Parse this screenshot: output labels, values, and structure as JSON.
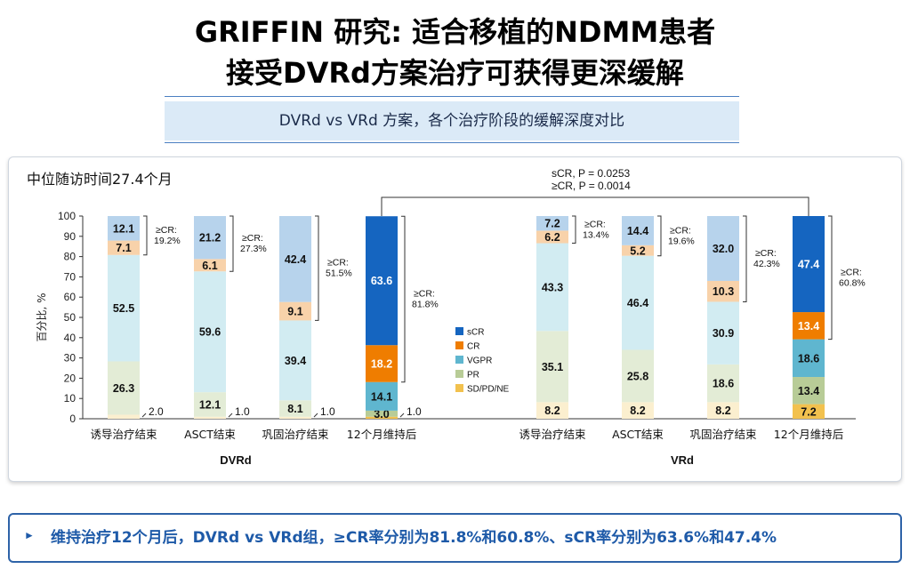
{
  "title": {
    "line1": "GRIFFIN 研究: 适合移植的NDMM患者",
    "line2": "接受DVRd方案治疗可获得更深缓解"
  },
  "subtitle": "DVRd vs VRd 方案，各个治疗阶段的缓解深度对比",
  "followup": "中位随访时间27.4个月",
  "colors": {
    "sCR": "#1565c0",
    "CR": "#ef7d00",
    "VGPR": "#5fb6cf",
    "PR": "#b8cc97",
    "SDPDNE": "#f2c14e",
    "sCR_light": "#b7d3ec",
    "CR_light": "#f8d2aa",
    "VGPR_light": "#d2ecf2",
    "PR_light": "#e3ecd6",
    "SDPDNE_light": "#fbefcf",
    "bottom_text": "#1e5aa8"
  },
  "bottom_note": "维持治疗12个月后，DVRd vs VRd组，≥CR率分别为81.8%和60.8%、sCR率分别为63.6%和47.4%",
  "chart_data": {
    "type": "stacked-bar",
    "ylabel": "百分比, %",
    "ylim": [
      0,
      100
    ],
    "yticks": [
      0,
      10,
      20,
      30,
      40,
      50,
      60,
      70,
      80,
      90,
      100
    ],
    "legend": [
      "sCR",
      "CR",
      "VGPR",
      "PR",
      "SD/PD/NE"
    ],
    "legend_keys": [
      "sCR",
      "CR",
      "VGPR",
      "PR",
      "SDPDNE"
    ],
    "pvalue_lines": [
      "sCR, P = 0.0253",
      "≥CR, P = 0.0014"
    ],
    "groups": [
      {
        "name": "DVRd",
        "bars": [
          {
            "label": "诱导治疗结束",
            "values": {
              "SDPDNE": 2.0,
              "PR": 26.3,
              "VGPR": 52.5,
              "CR": 7.1,
              "sCR": 12.1
            },
            "labels": {
              "SDPDNE": "2.0",
              "PR": "26.3",
              "VGPR": "52.5",
              "CR": "7.1",
              "sCR": "12.1"
            },
            "ge_cr": "≥CR:\n19.2%",
            "highlight": false
          },
          {
            "label": "ASCT结束",
            "values": {
              "SDPDNE": 1.0,
              "PR": 12.1,
              "VGPR": 59.6,
              "CR": 6.1,
              "sCR": 21.2
            },
            "labels": {
              "SDPDNE": "1.0",
              "PR": "12.1",
              "VGPR": "59.6",
              "CR": "6.1",
              "sCR": "21.2"
            },
            "ge_cr": "≥CR:\n27.3%",
            "highlight": false
          },
          {
            "label": "巩固治疗结束",
            "values": {
              "SDPDNE": 1.0,
              "PR": 8.1,
              "VGPR": 39.4,
              "CR": 9.1,
              "sCR": 42.4
            },
            "labels": {
              "SDPDNE": "1.0",
              "PR": "8.1",
              "VGPR": "39.4",
              "CR": "9.1",
              "sCR": "42.4"
            },
            "ge_cr": "≥CR:\n51.5%",
            "highlight": false
          },
          {
            "label": "12个月维持后",
            "values": {
              "SDPDNE": 1.0,
              "PR": 3.0,
              "VGPR": 14.1,
              "CR": 18.2,
              "sCR": 63.6
            },
            "labels": {
              "SDPDNE": "1.0",
              "PR": "3.0",
              "VGPR": "14.1",
              "CR": "18.2",
              "sCR": "63.6"
            },
            "ge_cr": "≥CR:\n81.8%",
            "highlight": true
          }
        ]
      },
      {
        "name": "VRd",
        "bars": [
          {
            "label": "诱导治疗结束",
            "values": {
              "SDPDNE": 8.2,
              "PR": 35.1,
              "VGPR": 43.3,
              "CR": 6.2,
              "sCR": 7.2
            },
            "labels": {
              "SDPDNE": "8.2",
              "PR": "35.1",
              "VGPR": "43.3",
              "CR": "6.2",
              "sCR": "7.2"
            },
            "ge_cr": "≥CR:\n13.4%",
            "highlight": false
          },
          {
            "label": "ASCT结束",
            "values": {
              "SDPDNE": 8.2,
              "PR": 25.8,
              "VGPR": 46.4,
              "CR": 5.2,
              "sCR": 14.4
            },
            "labels": {
              "SDPDNE": "8.2",
              "PR": "25.8",
              "VGPR": "46.4",
              "CR": "5.2",
              "sCR": "14.4"
            },
            "ge_cr": "≥CR:\n19.6%",
            "highlight": false
          },
          {
            "label": "巩固治疗结束",
            "values": {
              "SDPDNE": 8.2,
              "PR": 18.6,
              "VGPR": 30.9,
              "CR": 10.3,
              "sCR": 32.0
            },
            "labels": {
              "SDPDNE": "8.2",
              "PR": "18.6",
              "VGPR": "30.9",
              "CR": "10.3",
              "sCR": "32.0"
            },
            "ge_cr": "≥CR:\n42.3%",
            "highlight": false
          },
          {
            "label": "12个月维持后",
            "values": {
              "SDPDNE": 7.2,
              "PR": 13.4,
              "VGPR": 18.6,
              "CR": 13.4,
              "sCR": 47.4
            },
            "labels": {
              "SDPDNE": "7.2",
              "PR": "13.4",
              "VGPR": "18.6",
              "CR": "13.4",
              "sCR": "47.4"
            },
            "ge_cr": "≥CR:\n60.8%",
            "highlight": true
          }
        ]
      }
    ]
  }
}
